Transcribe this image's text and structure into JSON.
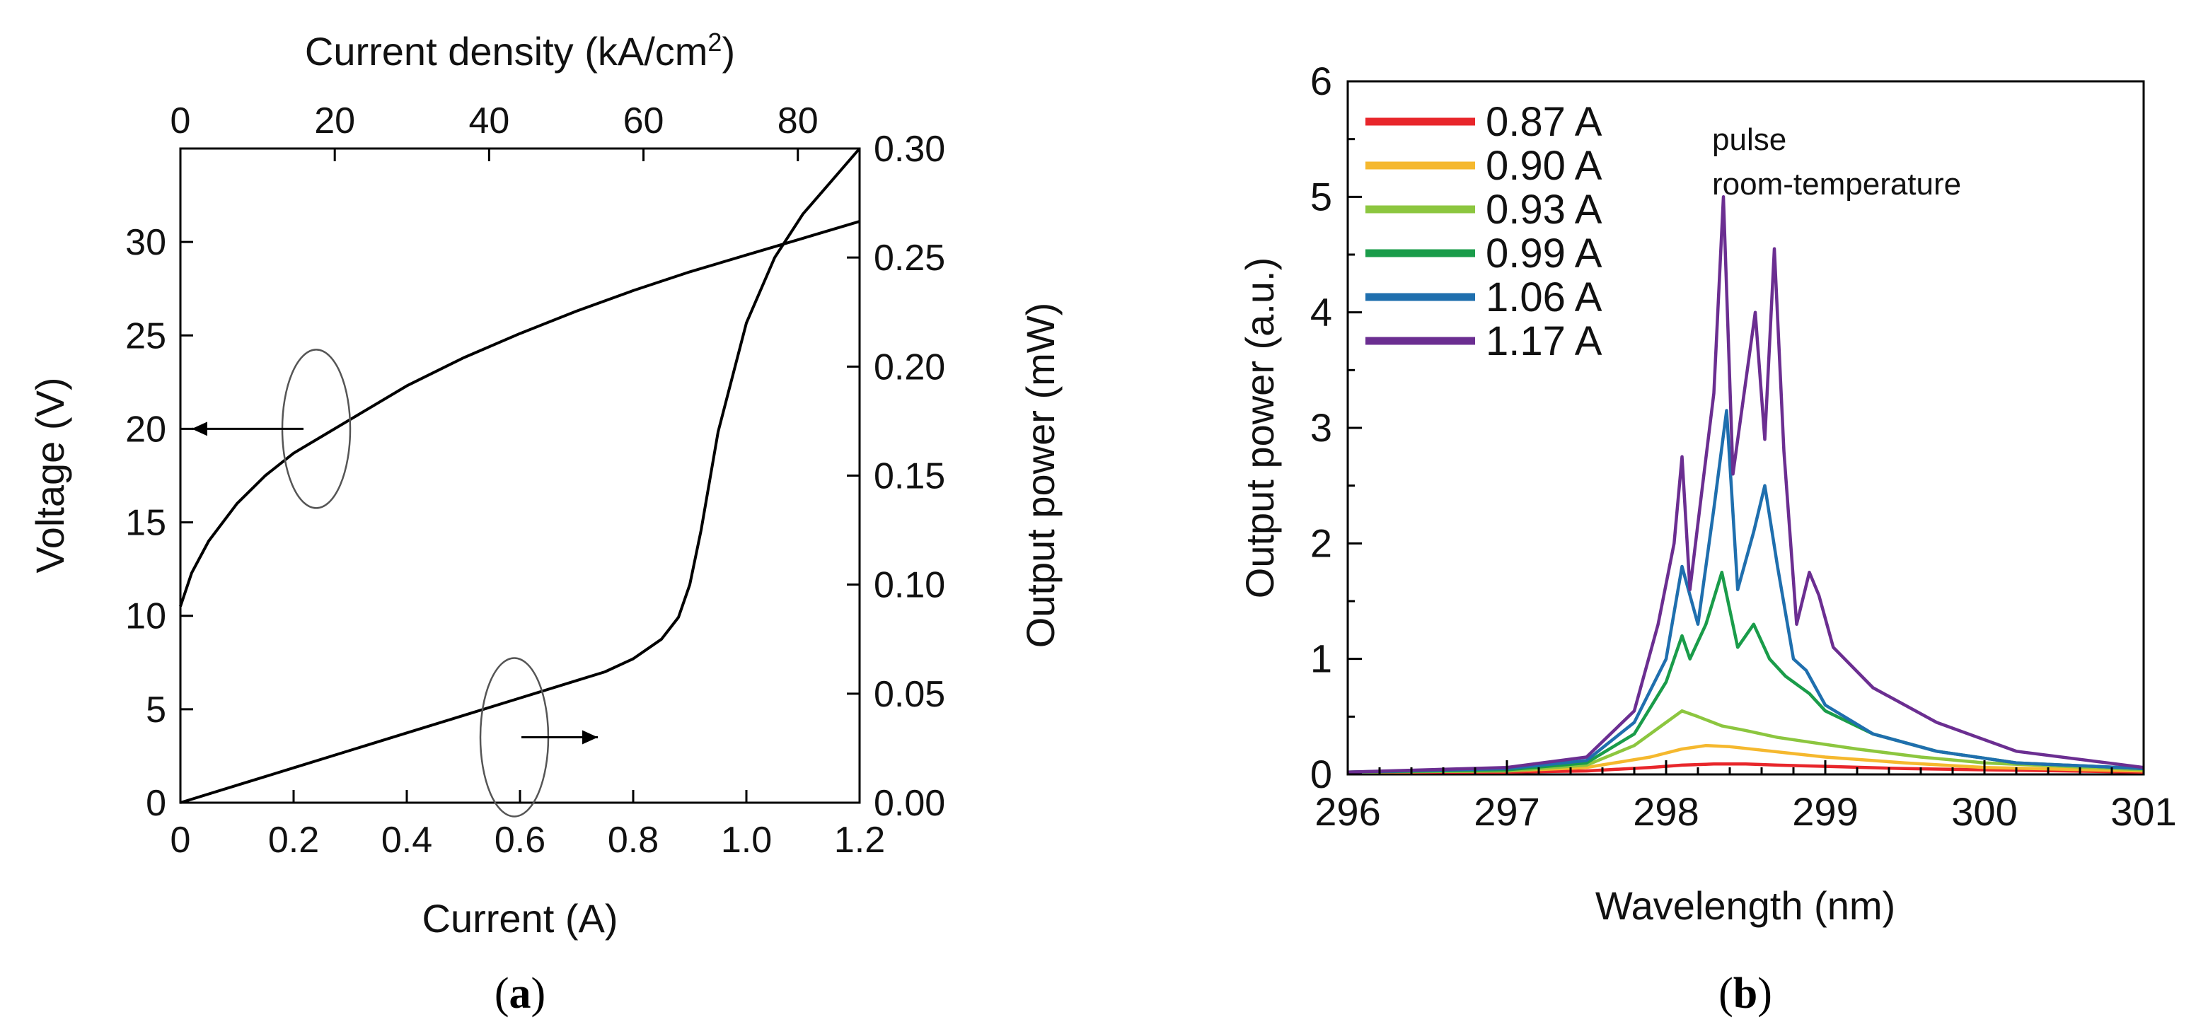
{
  "chart_data": [
    {
      "id": "a",
      "type": "line",
      "caption": {
        "open": "(",
        "letter": "a",
        "close": ")"
      },
      "xlabel": "Current (A)",
      "xlim": [
        0,
        1.2
      ],
      "xticks": [
        0,
        0.2,
        0.4,
        0.6,
        0.8,
        1.0,
        1.2
      ],
      "xtick_labels": [
        "0",
        "0.2",
        "0.4",
        "0.6",
        "0.8",
        "1.0",
        "1.2"
      ],
      "top_xlabel": {
        "main": "Current density (kA/cm",
        "sup": "2",
        "close": ")"
      },
      "top_xlim": [
        0,
        88
      ],
      "top_xticks": [
        0,
        20,
        40,
        60,
        80
      ],
      "top_xtick_labels": [
        "0",
        "20",
        "40",
        "60",
        "80"
      ],
      "ylabel_left": "Voltage (V)",
      "ylim_left": [
        0,
        35
      ],
      "yticks_left": [
        0,
        5,
        10,
        15,
        20,
        25,
        30
      ],
      "ytick_labels_left": [
        "0",
        "5",
        "10",
        "15",
        "20",
        "25",
        "30"
      ],
      "ylabel_right": "Output power (mW)",
      "ylim_right": [
        0,
        0.3
      ],
      "yticks_right": [
        0,
        0.05,
        0.1,
        0.15,
        0.2,
        0.25,
        0.3
      ],
      "ytick_labels_right": [
        "0.00",
        "0.05",
        "0.10",
        "0.15",
        "0.20",
        "0.25",
        "0.30"
      ],
      "series": [
        {
          "axis": "left",
          "color": "#000000",
          "x": [
            0,
            0.02,
            0.05,
            0.1,
            0.15,
            0.2,
            0.25,
            0.3,
            0.4,
            0.5,
            0.6,
            0.7,
            0.8,
            0.9,
            1.0,
            1.1,
            1.2
          ],
          "y": [
            10.5,
            12.3,
            14.0,
            16.0,
            17.5,
            18.7,
            19.6,
            20.5,
            22.3,
            23.8,
            25.1,
            26.3,
            27.4,
            28.4,
            29.3,
            30.2,
            31.1
          ]
        },
        {
          "axis": "right",
          "color": "#000000",
          "x": [
            0,
            0.1,
            0.2,
            0.3,
            0.4,
            0.5,
            0.6,
            0.7,
            0.75,
            0.8,
            0.85,
            0.88,
            0.9,
            0.92,
            0.95,
            1.0,
            1.05,
            1.1,
            1.15,
            1.2
          ],
          "y": [
            0,
            0.008,
            0.016,
            0.024,
            0.032,
            0.04,
            0.048,
            0.056,
            0.06,
            0.066,
            0.075,
            0.085,
            0.1,
            0.125,
            0.17,
            0.22,
            0.25,
            0.27,
            0.285,
            0.3
          ]
        }
      ],
      "annotations": [
        {
          "series": "left",
          "arrow_direction": "left",
          "ellipse_center": [
            0.24,
            20
          ]
        },
        {
          "series": "right",
          "arrow_direction": "right",
          "ellipse_center": [
            0.59,
            3.5
          ]
        }
      ]
    },
    {
      "id": "b",
      "type": "line",
      "caption": {
        "open": "(",
        "letter": "b",
        "close": ")"
      },
      "xlabel": "Wavelength (nm)",
      "xlim": [
        296,
        301
      ],
      "xticks": [
        296,
        297,
        298,
        299,
        300,
        301
      ],
      "xtick_labels": [
        "296",
        "297",
        "298",
        "299",
        "300",
        "301"
      ],
      "ylabel": "Output power (a.u.)",
      "ylim": [
        0,
        6
      ],
      "yticks": [
        0,
        1,
        2,
        3,
        4,
        5,
        6
      ],
      "ytick_labels": [
        "0",
        "1",
        "2",
        "3",
        "4",
        "5",
        "6"
      ],
      "notes": [
        "pulse",
        "room-temperature"
      ],
      "legend_position": "top-left",
      "series": [
        {
          "name": "0.87 A",
          "color": "#e8262b",
          "x": [
            296,
            297,
            297.5,
            297.9,
            298.1,
            298.3,
            298.5,
            298.7,
            299.0,
            299.5,
            300,
            301
          ],
          "y": [
            0.02,
            0.02,
            0.03,
            0.06,
            0.08,
            0.09,
            0.09,
            0.08,
            0.07,
            0.05,
            0.04,
            0.02
          ]
        },
        {
          "name": "0.90 A",
          "color": "#f5b82e",
          "x": [
            296,
            297,
            297.5,
            297.9,
            298.1,
            298.25,
            298.4,
            298.6,
            298.8,
            299.0,
            299.5,
            300,
            301
          ],
          "y": [
            0.02,
            0.03,
            0.06,
            0.15,
            0.22,
            0.25,
            0.24,
            0.21,
            0.18,
            0.15,
            0.1,
            0.06,
            0.03
          ]
        },
        {
          "name": "0.93 A",
          "color": "#8cc63f",
          "x": [
            296,
            297,
            297.5,
            297.8,
            298.0,
            298.1,
            298.2,
            298.35,
            298.5,
            298.7,
            298.9,
            299.2,
            299.6,
            300,
            301
          ],
          "y": [
            0.02,
            0.03,
            0.08,
            0.25,
            0.45,
            0.55,
            0.5,
            0.42,
            0.38,
            0.32,
            0.28,
            0.22,
            0.15,
            0.1,
            0.04
          ]
        },
        {
          "name": "0.99 A",
          "color": "#1a9c4a",
          "x": [
            296,
            297,
            297.5,
            297.8,
            298.0,
            298.1,
            298.15,
            298.25,
            298.35,
            298.45,
            298.55,
            298.65,
            298.75,
            298.9,
            299.0,
            299.3,
            299.7,
            300.2,
            301
          ],
          "y": [
            0.02,
            0.04,
            0.1,
            0.35,
            0.8,
            1.2,
            1.0,
            1.3,
            1.75,
            1.1,
            1.3,
            1.0,
            0.85,
            0.7,
            0.55,
            0.35,
            0.2,
            0.1,
            0.05
          ]
        },
        {
          "name": "1.06 A",
          "color": "#1f6fae",
          "x": [
            296,
            297,
            297.5,
            297.8,
            298.0,
            298.1,
            298.2,
            298.3,
            298.38,
            298.45,
            298.55,
            298.62,
            298.7,
            298.8,
            298.88,
            299.0,
            299.3,
            299.7,
            300.2,
            301
          ],
          "y": [
            0.02,
            0.05,
            0.12,
            0.45,
            1.0,
            1.8,
            1.3,
            2.3,
            3.15,
            1.6,
            2.1,
            2.5,
            1.8,
            1.0,
            0.9,
            0.6,
            0.35,
            0.2,
            0.1,
            0.05
          ]
        },
        {
          "name": "1.17 A",
          "color": "#6b2e91",
          "x": [
            296,
            297,
            297.5,
            297.8,
            297.95,
            298.05,
            298.1,
            298.15,
            298.22,
            298.3,
            298.36,
            298.42,
            298.5,
            298.56,
            298.62,
            298.68,
            298.74,
            298.82,
            298.9,
            298.96,
            299.05,
            299.3,
            299.7,
            300.2,
            301
          ],
          "y": [
            0.02,
            0.06,
            0.15,
            0.55,
            1.3,
            2.0,
            2.75,
            1.6,
            2.4,
            3.3,
            5.0,
            2.6,
            3.4,
            4.0,
            2.9,
            4.55,
            2.8,
            1.3,
            1.75,
            1.55,
            1.1,
            0.75,
            0.45,
            0.2,
            0.06
          ]
        }
      ]
    }
  ]
}
